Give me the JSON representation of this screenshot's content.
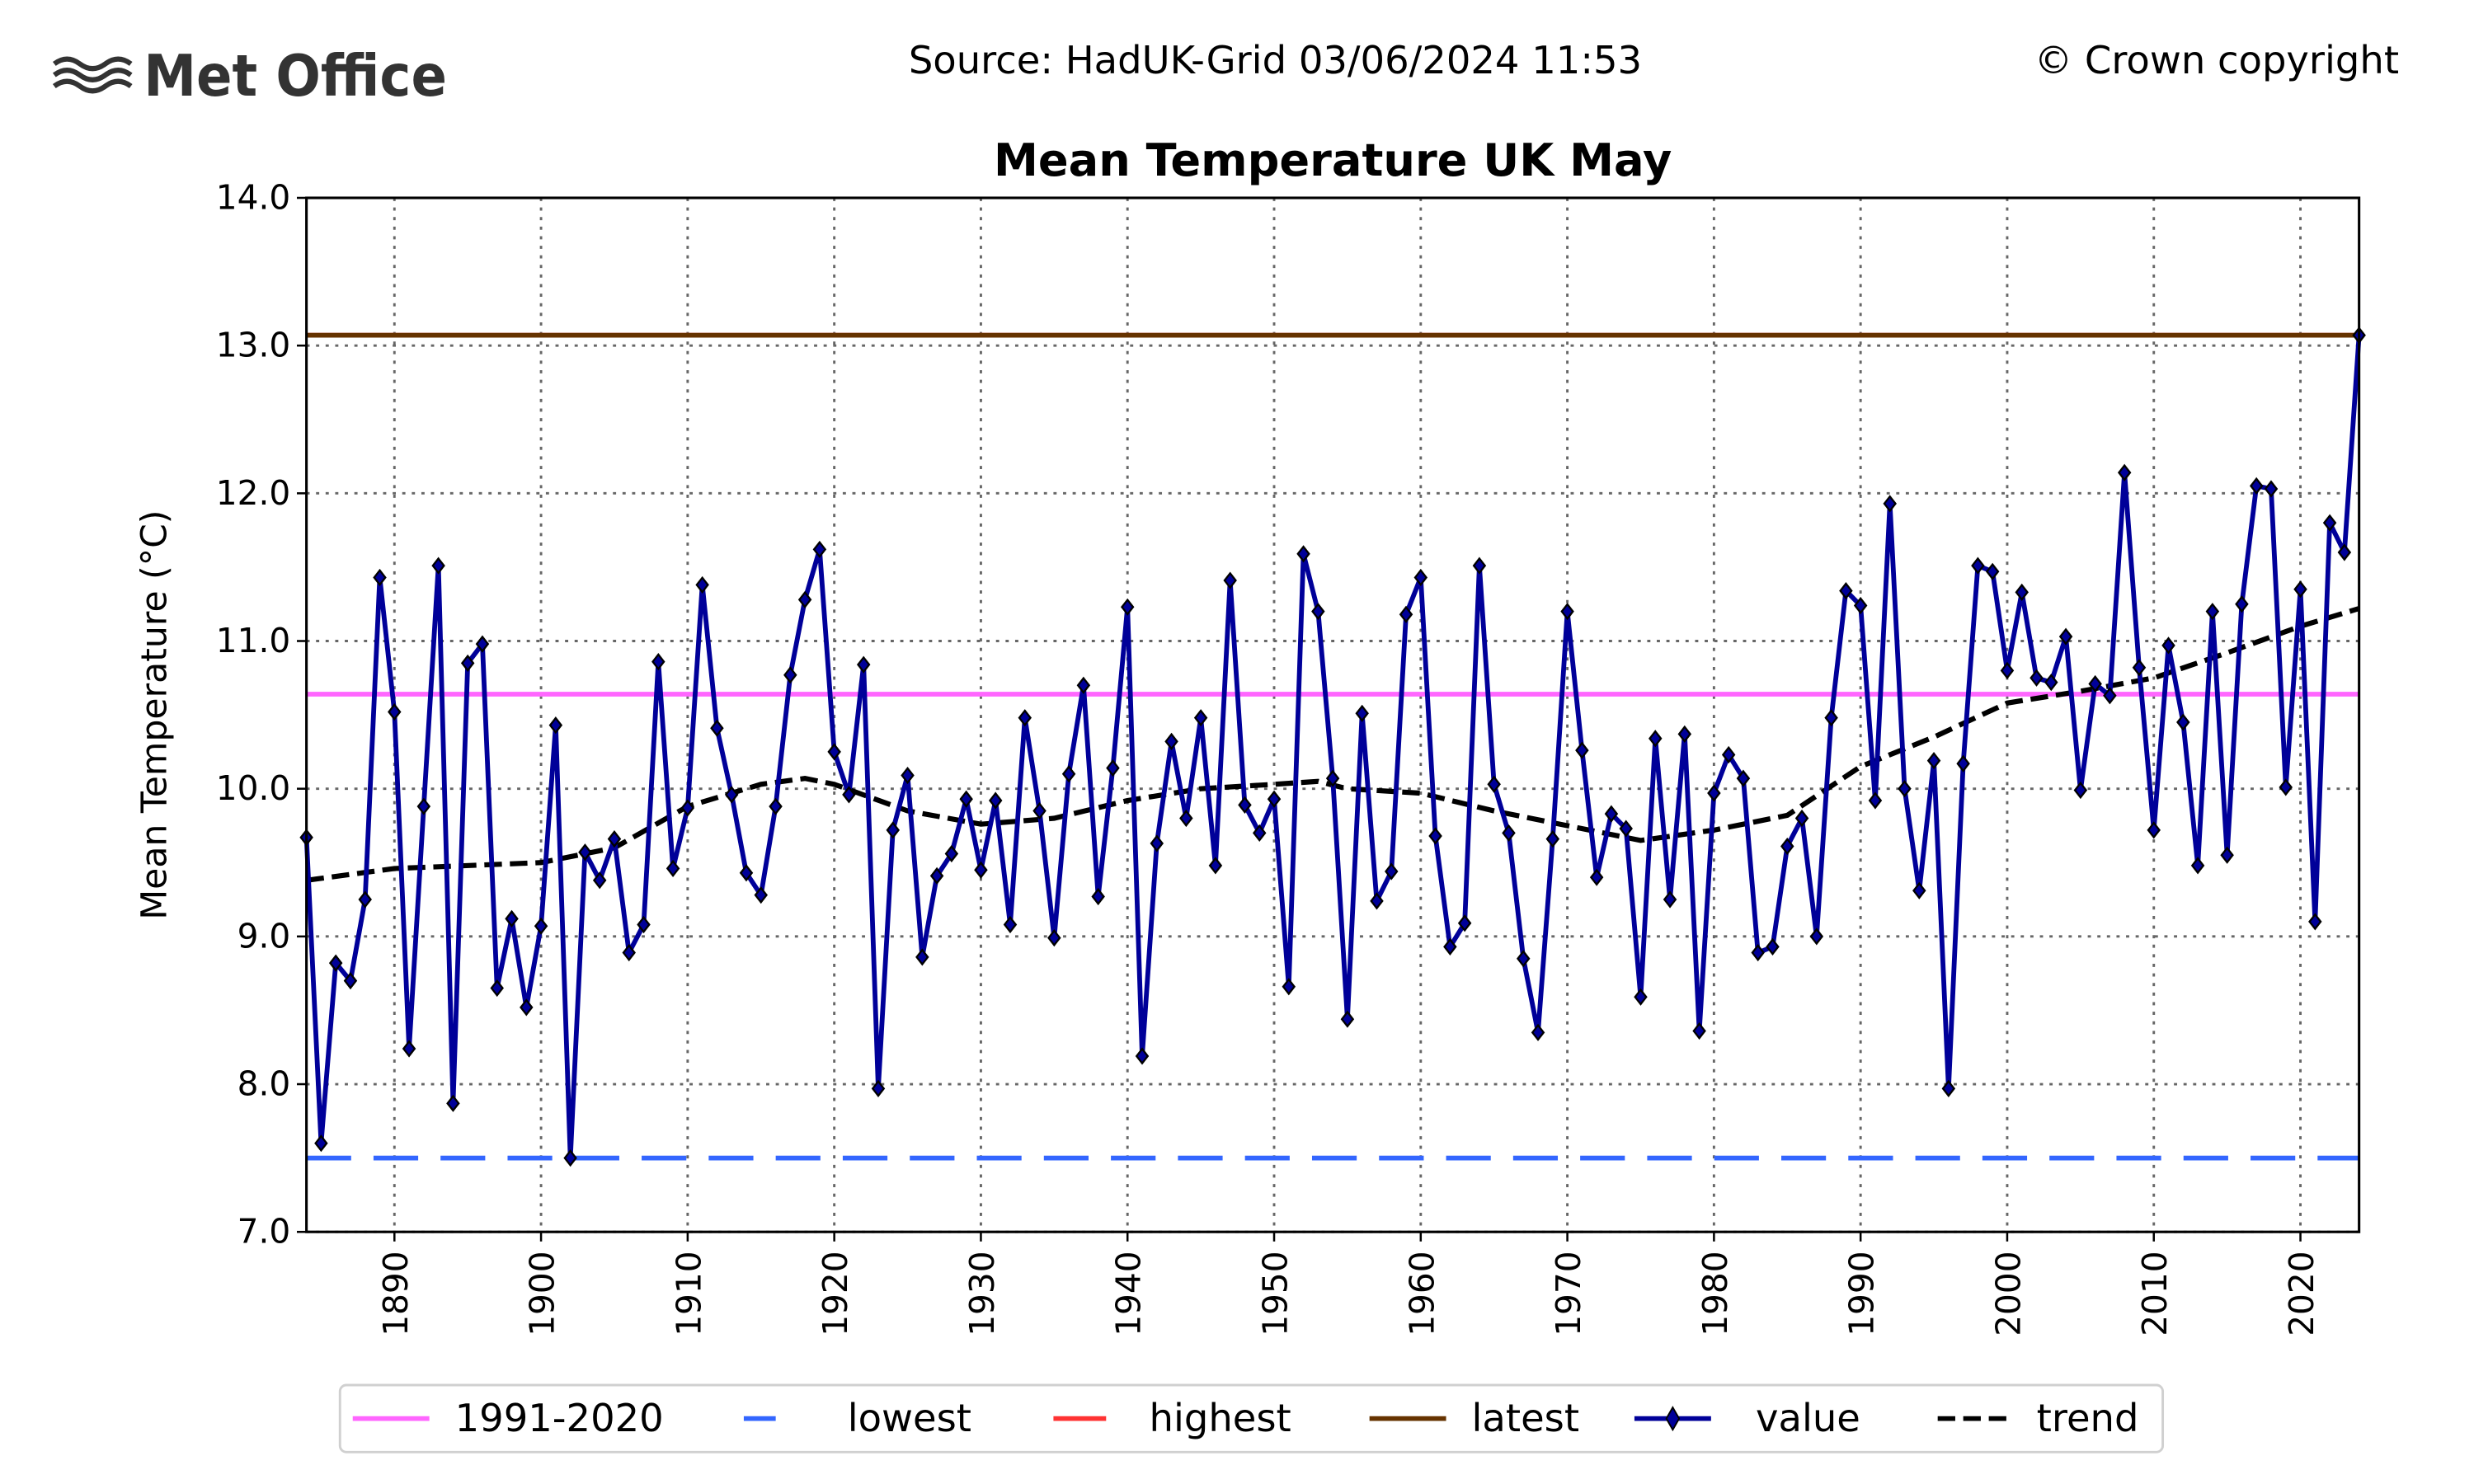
{
  "header": {
    "logo_text": "Met Office",
    "source": "Source: HadUK-Grid 03/06/2024 11:53",
    "copyright": "© Crown copyright"
  },
  "chart_data": {
    "type": "line",
    "title": "Mean Temperature UK May",
    "xlabel": "",
    "ylabel": "Mean Temperature (°C)",
    "xlim": [
      1884,
      2024
    ],
    "ylim": [
      7.0,
      14.0
    ],
    "grid": true,
    "legend_position": "bottom",
    "y_ticks": [
      "7.0",
      "8.0",
      "9.0",
      "10.0",
      "11.0",
      "12.0",
      "13.0",
      "14.0"
    ],
    "x_ticks": [
      "1890",
      "1900",
      "1910",
      "1920",
      "1930",
      "1940",
      "1950",
      "1960",
      "1970",
      "1980",
      "1990",
      "2000",
      "2010",
      "2020"
    ],
    "colors": {
      "baseline": "#ff66ff",
      "lowest": "#3366ff",
      "highest": "#ff3333",
      "latest": "#663300",
      "value": "#000099",
      "trend": "#000000"
    },
    "reference_lines": {
      "1991-2020": 10.64,
      "lowest": 7.5,
      "highest": 13.07,
      "latest": 13.07
    },
    "legend": [
      "1991-2020",
      "lowest",
      "highest",
      "latest",
      "value",
      "trend"
    ],
    "series": [
      {
        "name": "value",
        "x_start": 1884,
        "values": [
          9.67,
          7.6,
          8.82,
          8.7,
          9.25,
          11.43,
          10.52,
          8.24,
          9.88,
          11.51,
          7.87,
          10.85,
          10.98,
          8.65,
          9.12,
          8.52,
          9.07,
          10.43,
          7.5,
          9.57,
          9.38,
          9.66,
          8.89,
          9.08,
          10.86,
          9.46,
          9.87,
          11.38,
          10.41,
          9.96,
          9.43,
          9.28,
          9.88,
          10.77,
          11.28,
          11.62,
          10.25,
          9.96,
          10.84,
          7.97,
          9.72,
          10.09,
          8.86,
          9.41,
          9.56,
          9.93,
          9.45,
          9.92,
          9.08,
          10.48,
          9.85,
          8.99,
          10.1,
          10.7,
          9.27,
          10.14,
          11.23,
          8.19,
          9.63,
          10.32,
          9.8,
          10.48,
          9.48,
          11.41,
          9.89,
          9.7,
          9.93,
          8.66,
          11.59,
          11.2,
          10.07,
          8.44,
          10.51,
          9.24,
          9.44,
          11.18,
          11.43,
          9.68,
          8.93,
          9.09,
          11.51,
          10.03,
          9.7,
          8.85,
          8.35,
          9.66,
          11.2,
          10.26,
          9.4,
          9.83,
          9.73,
          8.59,
          10.34,
          9.25,
          10.37,
          8.36,
          9.97,
          10.23,
          10.07,
          8.89,
          8.93,
          9.61,
          9.8,
          9.0,
          10.48,
          11.34,
          11.24,
          9.92,
          11.93,
          10.0,
          9.31,
          10.19,
          7.97,
          10.17,
          11.51,
          11.47,
          10.8,
          11.33,
          10.75,
          10.72,
          11.03,
          9.99,
          10.71,
          10.63,
          12.14,
          10.82,
          9.72,
          10.97,
          10.45,
          9.48,
          11.2,
          9.55,
          11.25,
          12.05,
          12.03,
          10.01,
          11.35,
          9.1,
          11.8,
          11.6,
          13.07
        ]
      },
      {
        "name": "trend",
        "points": [
          [
            1884,
            9.38
          ],
          [
            1890,
            9.46
          ],
          [
            1900,
            9.5
          ],
          [
            1905,
            9.6
          ],
          [
            1910,
            9.88
          ],
          [
            1915,
            10.03
          ],
          [
            1918,
            10.07
          ],
          [
            1920,
            10.03
          ],
          [
            1925,
            9.85
          ],
          [
            1930,
            9.76
          ],
          [
            1935,
            9.8
          ],
          [
            1940,
            9.92
          ],
          [
            1945,
            10.0
          ],
          [
            1950,
            10.03
          ],
          [
            1953,
            10.05
          ],
          [
            1955,
            10.0
          ],
          [
            1960,
            9.97
          ],
          [
            1965,
            9.85
          ],
          [
            1970,
            9.75
          ],
          [
            1975,
            9.65
          ],
          [
            1980,
            9.72
          ],
          [
            1985,
            9.82
          ],
          [
            1990,
            10.15
          ],
          [
            1995,
            10.35
          ],
          [
            2000,
            10.58
          ],
          [
            2005,
            10.66
          ],
          [
            2010,
            10.75
          ],
          [
            2015,
            10.92
          ],
          [
            2020,
            11.1
          ],
          [
            2024,
            11.22
          ]
        ]
      }
    ]
  }
}
